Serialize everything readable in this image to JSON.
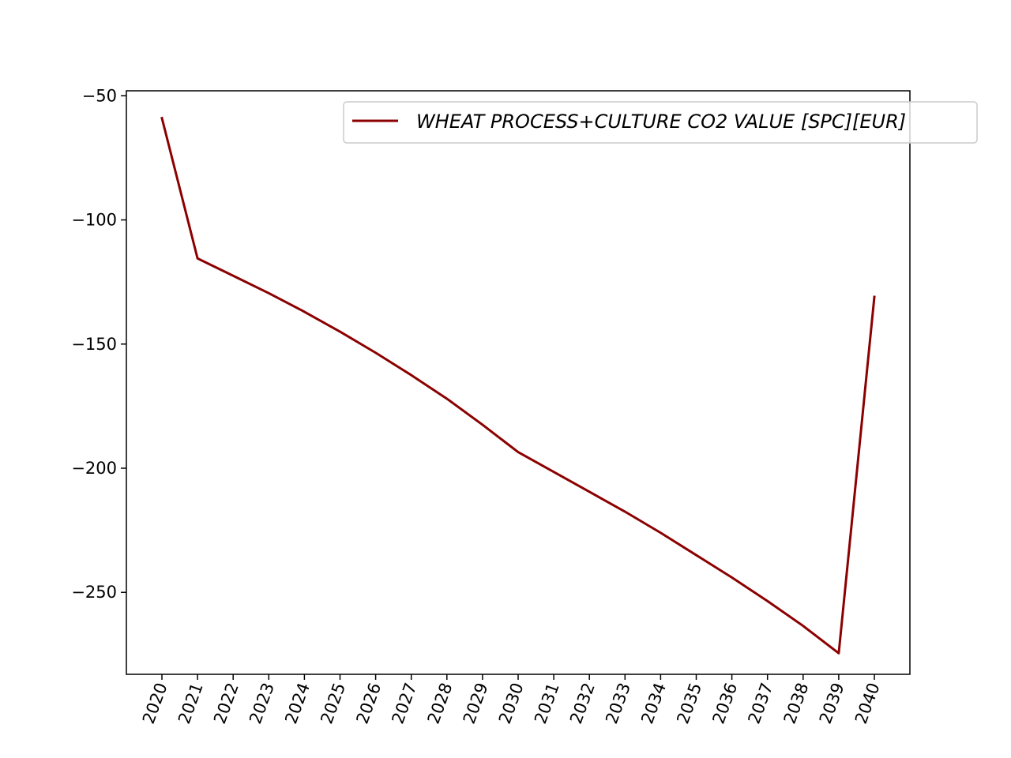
{
  "chart_data": {
    "type": "line",
    "title": "",
    "xlabel": "",
    "ylabel": "",
    "x": [
      "2020",
      "2021",
      "2022",
      "2023",
      "2024",
      "2025",
      "2026",
      "2027",
      "2028",
      "2029",
      "2030",
      "2031",
      "2032",
      "2033",
      "2034",
      "2035",
      "2036",
      "2037",
      "2038",
      "2039",
      "2040"
    ],
    "series": [
      {
        "name": "WHEAT PROCESS+CULTURE CO2 VALUE [SPC][EUR]",
        "color": "#8b0000",
        "values": [
          -59,
          -115.5,
          -122.5,
          -129.5,
          -137,
          -145,
          -153.5,
          -162.5,
          -172,
          -182.5,
          -193.5,
          -201.5,
          -209.5,
          -217.5,
          -226,
          -235,
          -244,
          -253.5,
          -263.5,
          -274.5,
          -131
        ]
      }
    ],
    "ylim": [
      -283,
      -48
    ],
    "yticks": [
      -50,
      -100,
      -150,
      -200,
      -250
    ],
    "ytick_labels": [
      "−50",
      "−100",
      "−150",
      "−200",
      "−250"
    ],
    "xtick_rotation_deg": -70,
    "legend_position": "top-right",
    "grid": false
  }
}
